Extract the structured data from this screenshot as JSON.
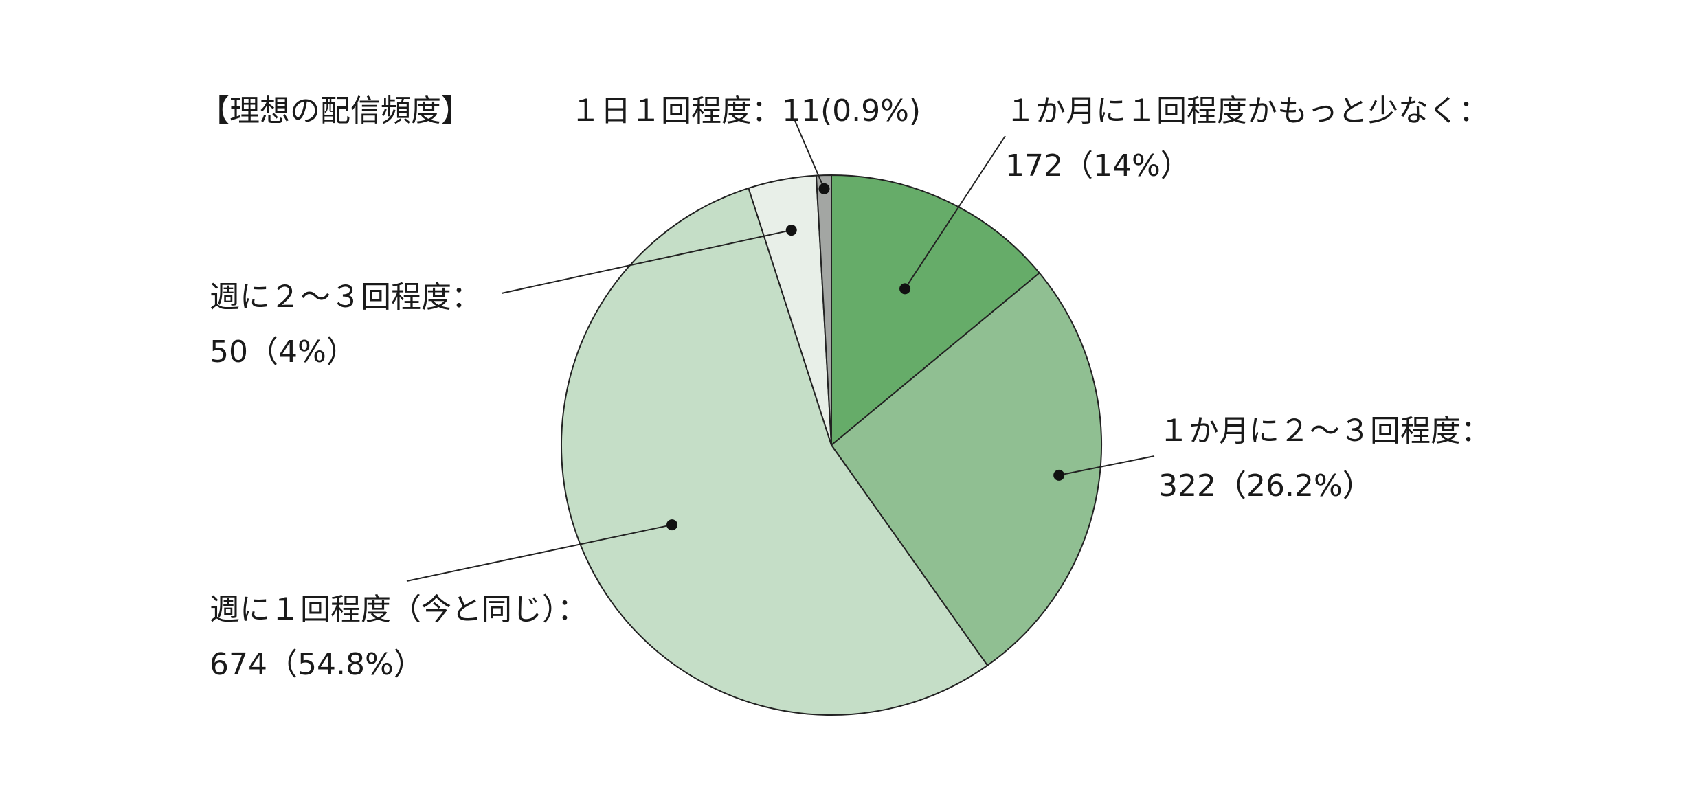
{
  "chart_data": {
    "type": "pie",
    "title": "【理想の配信頻度】",
    "start_angle": "top",
    "direction": "clockwise",
    "slices": [
      {
        "category": "１か月に１回程度かもっと少なく：",
        "value": 172,
        "percent": "14%",
        "value_text": "172（14%）",
        "color": "#66ac69"
      },
      {
        "category": "１か月に２～３回程度：",
        "value": 322,
        "percent": "26.2%",
        "value_text": "322（26.2%）",
        "color": "#90bf92"
      },
      {
        "category": "週に１回程度（今と同じ）：",
        "value": 674,
        "percent": "54.8%",
        "value_text": "674（54.8%）",
        "color": "#c5dec7"
      },
      {
        "category": "週に２～３回程度：",
        "value": 50,
        "percent": "4%",
        "value_text": "50（4%）",
        "color": "#e8efe8"
      },
      {
        "category": "１日１回程度：",
        "value": 11,
        "percent": "0.9%",
        "value_text": "１日１回程度：11(0.9%)",
        "color": "#a3a6a3"
      }
    ]
  }
}
